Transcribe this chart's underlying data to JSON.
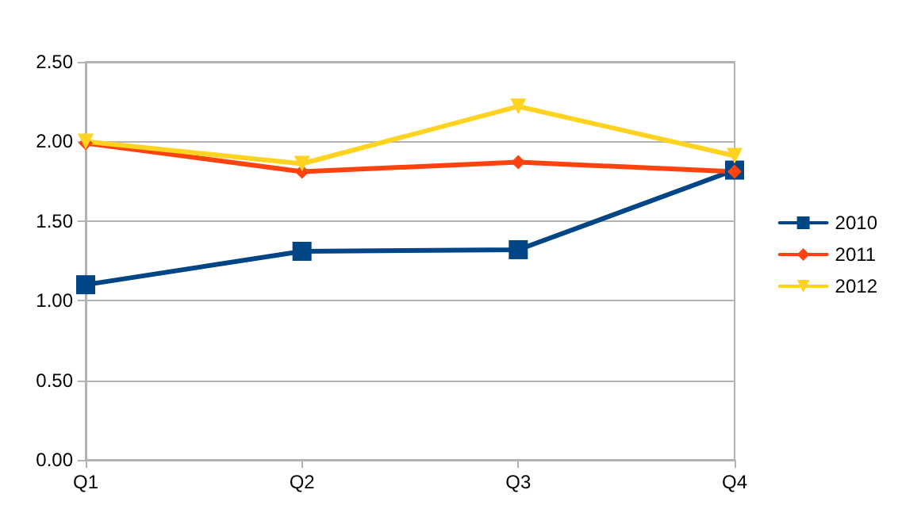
{
  "chart_data": {
    "type": "line",
    "categories": [
      "Q1",
      "Q2",
      "Q3",
      "Q4"
    ],
    "series": [
      {
        "name": "2010",
        "color": "#004586",
        "marker": "square",
        "values": [
          1.1,
          1.31,
          1.32,
          1.82
        ]
      },
      {
        "name": "2011",
        "color": "#ff420e",
        "marker": "diamond",
        "values": [
          1.99,
          1.81,
          1.87,
          1.81
        ]
      },
      {
        "name": "2012",
        "color": "#ffd320",
        "marker": "triangle",
        "values": [
          2.0,
          1.86,
          2.22,
          1.91
        ]
      }
    ],
    "ylim": [
      0,
      2.5
    ],
    "yticks": [
      {
        "value": 0,
        "label": "0.00"
      },
      {
        "value": 0.5,
        "label": "0.50"
      },
      {
        "value": 1,
        "label": "1.00"
      },
      {
        "value": 1.5,
        "label": "1.50"
      },
      {
        "value": 2,
        "label": "2.00"
      },
      {
        "value": 2.5,
        "label": "2.50"
      }
    ],
    "grid": "y",
    "legend": "right",
    "line_style": "solid"
  }
}
